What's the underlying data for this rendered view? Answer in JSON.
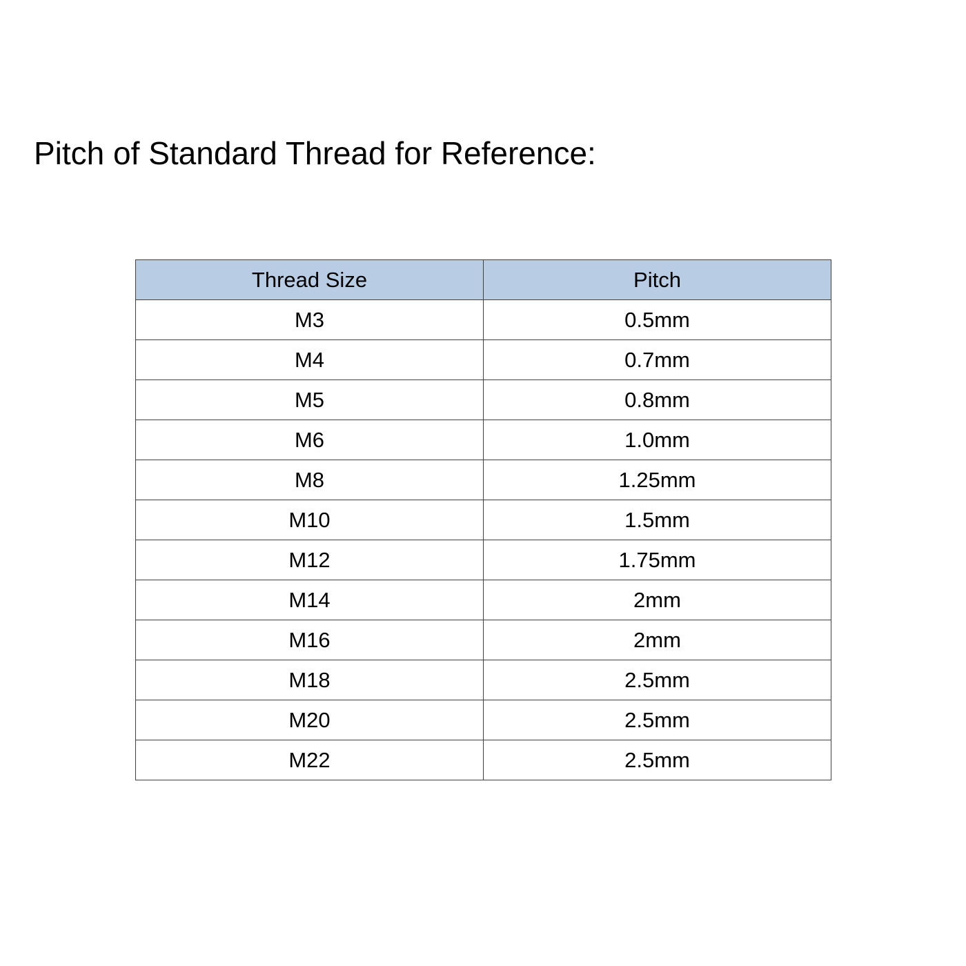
{
  "title": "Pitch of Standard Thread for Reference:",
  "colors": {
    "header_background": "#b8cce4",
    "border": "#404040"
  },
  "table": {
    "headers": [
      "Thread Size",
      "Pitch"
    ],
    "rows": [
      [
        "M3",
        "0.5mm"
      ],
      [
        "M4",
        "0.7mm"
      ],
      [
        "M5",
        "0.8mm"
      ],
      [
        "M6",
        "1.0mm"
      ],
      [
        "M8",
        "1.25mm"
      ],
      [
        "M10",
        "1.5mm"
      ],
      [
        "M12",
        "1.75mm"
      ],
      [
        "M14",
        "2mm"
      ],
      [
        "M16",
        "2mm"
      ],
      [
        "M18",
        "2.5mm"
      ],
      [
        "M20",
        "2.5mm"
      ],
      [
        "M22",
        "2.5mm"
      ]
    ]
  }
}
